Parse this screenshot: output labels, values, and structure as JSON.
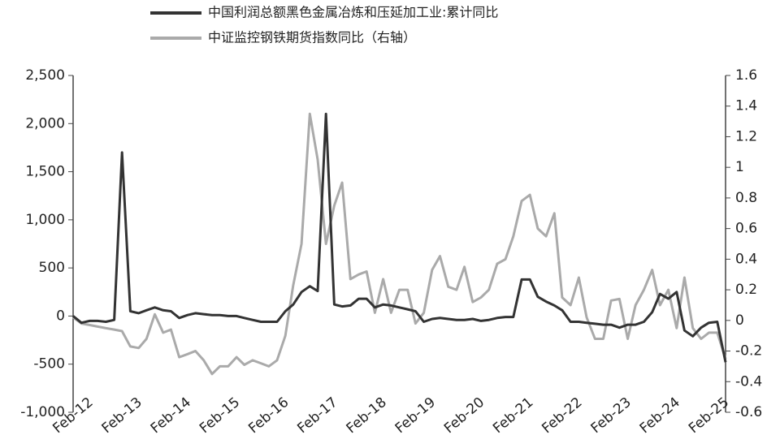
{
  "chart_data": {
    "type": "line",
    "x": [
      2012.08,
      2012.25,
      2012.42,
      2012.58,
      2012.75,
      2012.92,
      2013.08,
      2013.25,
      2013.42,
      2013.58,
      2013.75,
      2013.92,
      2014.08,
      2014.25,
      2014.42,
      2014.58,
      2014.75,
      2014.92,
      2015.08,
      2015.25,
      2015.42,
      2015.58,
      2015.75,
      2015.92,
      2016.08,
      2016.25,
      2016.42,
      2016.58,
      2016.75,
      2016.92,
      2017.08,
      2017.25,
      2017.42,
      2017.58,
      2017.75,
      2017.92,
      2018.08,
      2018.25,
      2018.42,
      2018.58,
      2018.75,
      2018.92,
      2019.08,
      2019.25,
      2019.42,
      2019.58,
      2019.75,
      2019.92,
      2020.08,
      2020.25,
      2020.42,
      2020.58,
      2020.75,
      2020.92,
      2021.08,
      2021.25,
      2021.42,
      2021.58,
      2021.75,
      2021.92,
      2022.08,
      2022.25,
      2022.42,
      2022.58,
      2022.75,
      2022.92,
      2023.08,
      2023.25,
      2023.42,
      2023.58,
      2023.75,
      2023.92,
      2024.08,
      2024.25,
      2024.42,
      2024.58,
      2024.75,
      2024.92,
      2025.08,
      2025.25,
      2025.42
    ],
    "series": [
      {
        "name": "中国利润总额黑色金属冶炼和压延加工业:累计同比",
        "color": "#333333",
        "axis": "y",
        "values": [
          0,
          -70,
          -50,
          -50,
          -60,
          -40,
          1700,
          50,
          30,
          60,
          90,
          60,
          50,
          -20,
          10,
          30,
          20,
          10,
          10,
          0,
          0,
          -20,
          -40,
          -60,
          -60,
          -60,
          50,
          120,
          250,
          310,
          260,
          2100,
          120,
          100,
          110,
          180,
          180,
          90,
          120,
          110,
          90,
          70,
          50,
          -60,
          -30,
          -20,
          -30,
          -40,
          -40,
          -30,
          -50,
          -40,
          -20,
          -10,
          -10,
          380,
          380,
          200,
          150,
          110,
          60,
          -60,
          -60,
          -70,
          -80,
          -90,
          -90,
          -120,
          -90,
          -90,
          -60,
          40,
          230,
          180,
          250,
          -150,
          -210,
          -120,
          -70,
          -60,
          -480
        ]
      },
      {
        "name": "中证监控钢铁期货指数同比（右轴）",
        "color": "#aaaaaa",
        "axis": "y2",
        "values": [
          0.02,
          -0.02,
          -0.03,
          -0.04,
          -0.05,
          -0.06,
          -0.07,
          -0.17,
          -0.18,
          -0.12,
          0.04,
          -0.08,
          -0.06,
          -0.24,
          -0.22,
          -0.2,
          -0.26,
          -0.35,
          -0.3,
          -0.3,
          -0.24,
          -0.29,
          -0.26,
          -0.28,
          -0.3,
          -0.26,
          -0.1,
          0.23,
          0.5,
          1.35,
          1.05,
          0.5,
          0.75,
          0.9,
          0.27,
          0.3,
          0.32,
          0.05,
          0.27,
          0.05,
          0.2,
          0.2,
          -0.02,
          0.05,
          0.33,
          0.42,
          0.22,
          0.2,
          0.35,
          0.12,
          0.15,
          0.2,
          0.37,
          0.4,
          0.55,
          0.78,
          0.82,
          0.6,
          0.55,
          0.7,
          0.15,
          0.1,
          0.28,
          0.02,
          -0.12,
          -0.12,
          0.13,
          0.14,
          -0.12,
          0.1,
          0.2,
          0.33,
          0.1,
          0.2,
          -0.05,
          0.28,
          -0.05,
          -0.12,
          -0.08,
          -0.08,
          -0.25
        ]
      }
    ],
    "xlim": [
      2012.08,
      2025.42
    ],
    "xticks": [
      {
        "value": 2012.08,
        "label": "Feb-12"
      },
      {
        "value": 2013.08,
        "label": "Feb-13"
      },
      {
        "value": 2014.08,
        "label": "Feb-14"
      },
      {
        "value": 2015.08,
        "label": "Feb-15"
      },
      {
        "value": 2016.08,
        "label": "Feb-16"
      },
      {
        "value": 2017.08,
        "label": "Feb-17"
      },
      {
        "value": 2018.08,
        "label": "Feb-18"
      },
      {
        "value": 2019.08,
        "label": "Feb-19"
      },
      {
        "value": 2020.08,
        "label": "Feb-20"
      },
      {
        "value": 2021.08,
        "label": "Feb-21"
      },
      {
        "value": 2022.08,
        "label": "Feb-22"
      },
      {
        "value": 2023.08,
        "label": "Feb-23"
      },
      {
        "value": 2024.08,
        "label": "Feb-24"
      },
      {
        "value": 2025.08,
        "label": "Feb-25"
      }
    ],
    "ylim": [
      -1000,
      2500
    ],
    "yticks": [
      {
        "value": -1000,
        "label": "-1,000"
      },
      -500,
      0,
      500,
      {
        "value": 1000,
        "label": "1,000"
      },
      {
        "value": 1500,
        "label": "1,500"
      },
      {
        "value": 2000,
        "label": "2,000"
      },
      {
        "value": 2500,
        "label": "2,500"
      }
    ],
    "y2lim": [
      -0.6,
      1.6
    ],
    "y2ticks": [
      -0.6,
      -0.4,
      -0.2,
      0,
      0.2,
      0.4,
      0.6,
      0.8,
      1,
      1.2,
      1.4,
      1.6
    ]
  }
}
